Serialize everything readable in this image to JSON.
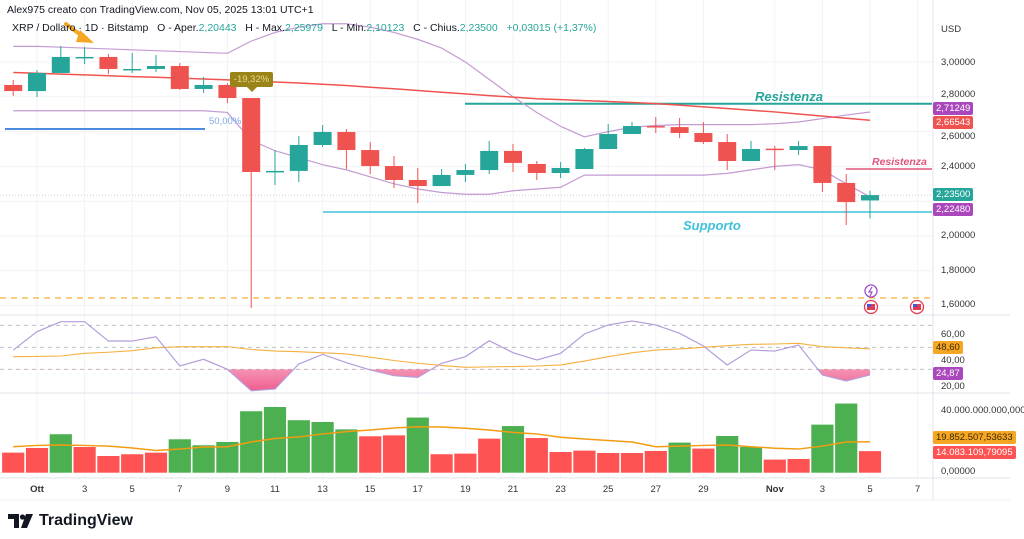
{
  "header": {
    "creator_line": "Alex975 creato con TradingView.com, Nov 05, 2025 13:01 UTC+1",
    "symbol": "XRP / Dollaro · 1D · Bitstamp",
    "open_label": "O - Aper.",
    "open_value": "2,20443",
    "high_label": "H - Max.",
    "high_value": "2,25979",
    "low_label": "L - Min.",
    "low_value": "2,10123",
    "close_label": "C - Chius.",
    "close_value": "2,23500",
    "change": "+0,03015 (+1,37%)"
  },
  "price_axis": {
    "currency": "USD",
    "ticks": [
      "3,00000",
      "2,80000",
      "2,60000",
      "2,40000",
      "2,00000",
      "1,80000",
      "1,60000"
    ],
    "badges": {
      "upper_band": "2,71249",
      "ma": "2,66543",
      "last_price": "2,23500",
      "lower_band": "2,22480"
    }
  },
  "rsi_axis": {
    "ticks": [
      "60,00",
      "40,00",
      "20,00"
    ],
    "badges": {
      "rsi_ma": "48,60",
      "rsi": "24,87"
    }
  },
  "volume_axis": {
    "ticks": [
      "40.000.000.000,00000",
      "0,00000"
    ],
    "badges": {
      "volume_ma": "19.852.507,53633",
      "volume": "14.083.109,79095"
    }
  },
  "time_axis": {
    "labels": [
      "Ott",
      "3",
      "5",
      "7",
      "9",
      "11",
      "13",
      "15",
      "17",
      "19",
      "21",
      "23",
      "25",
      "27",
      "29",
      "Nov",
      "3",
      "5",
      "7"
    ]
  },
  "annotations": {
    "resistance_top": "Resistenza",
    "resistance_near": "Resistenza",
    "support": "Supporto",
    "fib_label": "50,00%",
    "drop_label": "-19,32%"
  },
  "colors": {
    "up": "#26a69a",
    "down": "#ef5350",
    "volume_up": "#4caf50",
    "volume_down": "#ff5252",
    "band": "#c39bd3",
    "ma": "#ef5350",
    "rsi": "#b39ddb",
    "rsi_ma": "#f5b041",
    "volume_ma": "#f39c12",
    "resistance_top": "#26a69a",
    "resistance_near": "#e0557a",
    "support": "#3fc1d9",
    "fib": "#4a8de0",
    "dashed_level": "#f5a623"
  },
  "brand": "TradingView",
  "chart_data": {
    "type": "candlestick",
    "title": "XRP / Dollaro · 1D · Bitstamp",
    "ylabel": "USD",
    "ylim": [
      1.55,
      3.25
    ],
    "grid": true,
    "dates": [
      "Sep 30",
      "Oct 1",
      "Oct 2",
      "Oct 3",
      "Oct 4",
      "Oct 5",
      "Oct 6",
      "Oct 7",
      "Oct 8",
      "Oct 9",
      "Oct 10",
      "Oct 11",
      "Oct 12",
      "Oct 13",
      "Oct 14",
      "Oct 15",
      "Oct 16",
      "Oct 17",
      "Oct 18",
      "Oct 19",
      "Oct 20",
      "Oct 21",
      "Oct 22",
      "Oct 23",
      "Oct 24",
      "Oct 25",
      "Oct 26",
      "Oct 27",
      "Oct 28",
      "Oct 29",
      "Oct 30",
      "Oct 31",
      "Nov 1",
      "Nov 2",
      "Nov 3",
      "Nov 4",
      "Nov 5"
    ],
    "ohlc": [
      [
        2.868,
        2.897,
        2.805,
        2.833
      ],
      [
        2.833,
        2.954,
        2.799,
        2.937
      ],
      [
        2.937,
        3.092,
        2.937,
        3.029
      ],
      [
        3.025,
        3.086,
        2.989,
        3.029
      ],
      [
        3.029,
        3.046,
        2.931,
        2.96
      ],
      [
        2.958,
        3.052,
        2.937,
        2.96
      ],
      [
        2.96,
        3.04,
        2.943,
        2.977
      ],
      [
        2.977,
        2.994,
        2.839,
        2.845
      ],
      [
        2.845,
        2.914,
        2.822,
        2.868
      ],
      [
        2.868,
        2.879,
        2.764,
        2.793
      ],
      [
        2.793,
        2.793,
        1.586,
        2.368
      ],
      [
        2.368,
        2.494,
        2.293,
        2.374
      ],
      [
        2.374,
        2.575,
        2.31,
        2.523
      ],
      [
        2.523,
        2.638,
        2.511,
        2.598
      ],
      [
        2.598,
        2.615,
        2.385,
        2.494
      ],
      [
        2.494,
        2.54,
        2.356,
        2.402
      ],
      [
        2.402,
        2.46,
        2.276,
        2.322
      ],
      [
        2.322,
        2.391,
        2.19,
        2.287
      ],
      [
        2.287,
        2.385,
        2.287,
        2.351
      ],
      [
        2.351,
        2.414,
        2.31,
        2.379
      ],
      [
        2.379,
        2.546,
        2.356,
        2.489
      ],
      [
        2.489,
        2.529,
        2.368,
        2.42
      ],
      [
        2.414,
        2.431,
        2.322,
        2.362
      ],
      [
        2.362,
        2.425,
        2.333,
        2.391
      ],
      [
        2.385,
        2.506,
        2.385,
        2.5
      ],
      [
        2.5,
        2.644,
        2.5,
        2.586
      ],
      [
        2.586,
        2.655,
        2.586,
        2.632
      ],
      [
        2.632,
        2.684,
        2.592,
        2.626
      ],
      [
        2.626,
        2.678,
        2.563,
        2.592
      ],
      [
        2.592,
        2.655,
        2.529,
        2.54
      ],
      [
        2.54,
        2.586,
        2.379,
        2.431
      ],
      [
        2.431,
        2.546,
        2.431,
        2.5
      ],
      [
        2.502,
        2.517,
        2.379,
        2.5
      ],
      [
        2.494,
        2.546,
        2.466,
        2.517
      ],
      [
        2.517,
        2.517,
        2.253,
        2.305
      ],
      [
        2.305,
        2.356,
        2.063,
        2.195
      ],
      [
        2.20443,
        2.25979,
        2.10123,
        2.235
      ]
    ],
    "upper_band": [
      3.09,
      3.09,
      3.085,
      3.08,
      3.075,
      3.07,
      3.065,
      3.06,
      3.055,
      3.05,
      3.12,
      3.17,
      3.2,
      3.22,
      3.22,
      3.2,
      3.17,
      3.13,
      3.08,
      3.0,
      2.9,
      2.8,
      2.71,
      2.63,
      2.57,
      2.6,
      2.625,
      2.635,
      2.64,
      2.64,
      2.64,
      2.64,
      2.645,
      2.655,
      2.675,
      2.695,
      2.71249
    ],
    "lower_band": [
      2.72,
      2.72,
      2.72,
      2.72,
      2.72,
      2.72,
      2.72,
      2.72,
      2.72,
      2.71,
      2.55,
      2.49,
      2.45,
      2.41,
      2.38,
      2.34,
      2.3,
      2.27,
      2.25,
      2.24,
      2.24,
      2.26,
      2.27,
      2.28,
      2.35,
      2.35,
      2.35,
      2.35,
      2.35,
      2.35,
      2.36,
      2.38,
      2.4,
      2.41,
      2.38,
      2.3,
      2.2248
    ],
    "moving_average": [
      2.94,
      2.935,
      2.93,
      2.926,
      2.921,
      2.916,
      2.912,
      2.907,
      2.902,
      2.897,
      2.891,
      2.885,
      2.879,
      2.872,
      2.865,
      2.855,
      2.846,
      2.836,
      2.826,
      2.817,
      2.807,
      2.798,
      2.789,
      2.784,
      2.778,
      2.773,
      2.767,
      2.761,
      2.752,
      2.742,
      2.733,
      2.723,
      2.713,
      2.701,
      2.689,
      2.677,
      2.66543
    ],
    "levels": {
      "resistance_top": 2.76,
      "resistance_near": 2.385,
      "support": 2.138,
      "fib_50": 2.615,
      "dashed": 1.644
    },
    "rsi": {
      "levels": [
        70,
        50,
        30
      ],
      "values": [
        47.5,
        64.2,
        73.3,
        73.3,
        55.7,
        55.7,
        59.6,
        33.0,
        39.1,
        30.0,
        10.5,
        12.1,
        34.8,
        43.6,
        36.0,
        29.4,
        24.2,
        22.7,
        35.5,
        41.5,
        56.0,
        45.1,
        38.5,
        44.5,
        62.1,
        70.3,
        73.9,
        70.3,
        62.7,
        51.2,
        33.9,
        47.5,
        46.6,
        52.1,
        24.8,
        19.4,
        24.87
      ],
      "ma": [
        41.5,
        41.7,
        42.1,
        44.5,
        45.5,
        46.9,
        49.5,
        50.6,
        50.6,
        50.6,
        48,
        46.6,
        46,
        45,
        44,
        41,
        38,
        35.5,
        33.5,
        31.8,
        32.2,
        32.5,
        33,
        34,
        37.5,
        41.5,
        45,
        47.5,
        48.5,
        50,
        51.5,
        52.7,
        53,
        53.6,
        50.6,
        49.5,
        48.6
      ]
    },
    "volume": {
      "values": [
        13100000000.0,
        16100000000.0,
        24800000000.0,
        16700000000.0,
        11000000000.0,
        12100000000.0,
        13100000000.0,
        21600000000.0,
        17800000000.0,
        19900000000.0,
        39400000000.0,
        42100000000.0,
        33700000000.0,
        32600000000.0,
        27900000000.0,
        23500000000.0,
        24100000000.0,
        35400000000.0,
        12100000000.0,
        12500000000.0,
        22000000000.0,
        30000000000.0,
        22400000000.0,
        13500000000.0,
        14400000000.0,
        12900000000.0,
        12900000000.0,
        14200000000.0,
        19500000000.0,
        15700000000.0,
        23700000000.0,
        16700000000.0,
        8700000000.0,
        9100000000.0,
        30900000000.0,
        44300000000.0,
        14080000000.0
      ],
      "up": [
        false,
        false,
        true,
        false,
        false,
        false,
        false,
        true,
        true,
        true,
        true,
        true,
        true,
        true,
        true,
        false,
        false,
        true,
        false,
        false,
        false,
        true,
        false,
        false,
        false,
        false,
        false,
        false,
        true,
        false,
        true,
        true,
        false,
        false,
        true,
        true,
        false
      ],
      "ma": [
        16.7,
        17.5,
        17.8,
        17.5,
        17.1,
        15.9,
        14.3,
        15.2,
        16.5,
        16.7,
        19.7,
        21.9,
        22.9,
        24.8,
        26.3,
        27.3,
        28.6,
        29.4,
        29.2,
        28.4,
        27.3,
        25.8,
        24.8,
        22.7,
        21.6,
        20.6,
        19.7,
        16.7,
        17.1,
        17.5,
        17.8,
        16.7,
        15.7,
        15.2,
        17.1,
        19.7,
        19.85
      ]
    }
  }
}
